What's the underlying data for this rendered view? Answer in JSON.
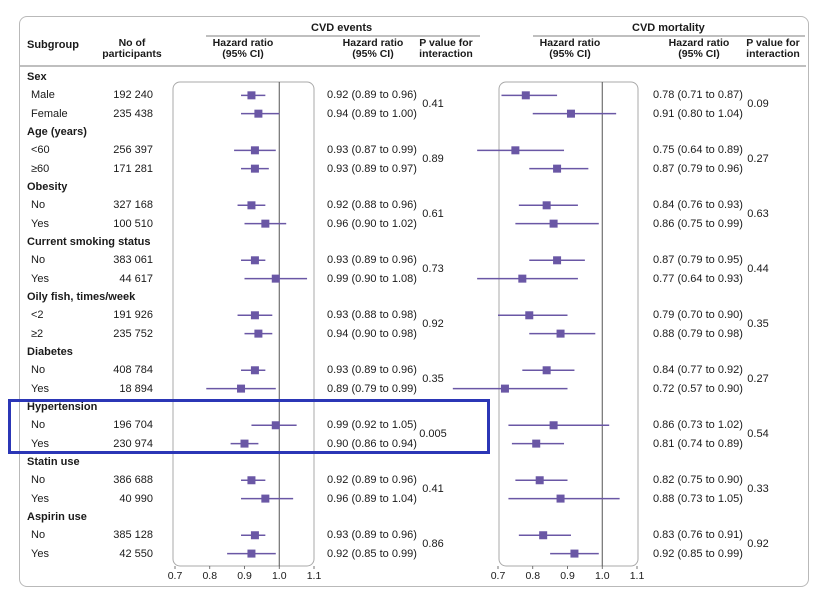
{
  "headers": {
    "subgroup": "Subgroup",
    "participants": "No of\nparticipants",
    "hr_plot": "Hazard ratio\n(95% CI)",
    "hr_text": "Hazard ratio\n(95% CI)",
    "p_int": "P value for\ninteraction",
    "panel1_title": "CVD events",
    "panel2_title": "CVD mortality"
  },
  "axis": {
    "ticks": [
      "0.7",
      "0.8",
      "0.9",
      "1.0",
      "1.1"
    ],
    "tick_values": [
      0.7,
      0.8,
      0.9,
      1.0,
      1.1
    ]
  },
  "colors": {
    "marker": "#6a57a5",
    "highlight": "#2b36b6",
    "refline": "#555555"
  },
  "chart_data": {
    "type": "forest",
    "xlim": [
      0.7,
      1.1
    ],
    "reference_line": 1.0,
    "highlighted_group": "Hypertension",
    "groups": [
      {
        "name": "Sex",
        "rows": [
          {
            "label": "Male",
            "n": "192 240",
            "events": {
              "hr": 0.92,
              "lo": 0.89,
              "hi": 0.96,
              "text": "0.92 (0.89 to 0.96)"
            },
            "mortality": {
              "hr": 0.78,
              "lo": 0.71,
              "hi": 0.87,
              "text": "0.78 (0.71 to 0.87)"
            }
          },
          {
            "label": "Female",
            "n": "235 438",
            "events": {
              "hr": 0.94,
              "lo": 0.89,
              "hi": 1.0,
              "text": "0.94 (0.89 to 1.00)"
            },
            "mortality": {
              "hr": 0.91,
              "lo": 0.8,
              "hi": 1.04,
              "text": "0.91 (0.80 to 1.04)"
            }
          }
        ],
        "p_events": "0.41",
        "p_mortality": "0.09"
      },
      {
        "name": "Age (years)",
        "rows": [
          {
            "label": "<60",
            "n": "256 397",
            "events": {
              "hr": 0.93,
              "lo": 0.87,
              "hi": 0.99,
              "text": "0.93 (0.87 to 0.99)"
            },
            "mortality": {
              "hr": 0.75,
              "lo": 0.64,
              "hi": 0.89,
              "text": "0.75 (0.64 to 0.89)"
            }
          },
          {
            "label": "≥60",
            "n": "171 281",
            "events": {
              "hr": 0.93,
              "lo": 0.89,
              "hi": 0.97,
              "text": "0.93 (0.89 to 0.97)"
            },
            "mortality": {
              "hr": 0.87,
              "lo": 0.79,
              "hi": 0.96,
              "text": "0.87 (0.79 to 0.96)"
            }
          }
        ],
        "p_events": "0.89",
        "p_mortality": "0.27"
      },
      {
        "name": "Obesity",
        "rows": [
          {
            "label": "No",
            "n": "327 168",
            "events": {
              "hr": 0.92,
              "lo": 0.88,
              "hi": 0.96,
              "text": "0.92 (0.88 to 0.96)"
            },
            "mortality": {
              "hr": 0.84,
              "lo": 0.76,
              "hi": 0.93,
              "text": "0.84 (0.76 to 0.93)"
            }
          },
          {
            "label": "Yes",
            "n": "100 510",
            "events": {
              "hr": 0.96,
              "lo": 0.9,
              "hi": 1.02,
              "text": "0.96 (0.90 to 1.02)"
            },
            "mortality": {
              "hr": 0.86,
              "lo": 0.75,
              "hi": 0.99,
              "text": "0.86 (0.75 to 0.99)"
            }
          }
        ],
        "p_events": "0.61",
        "p_mortality": "0.63"
      },
      {
        "name": "Current smoking status",
        "rows": [
          {
            "label": "No",
            "n": "383 061",
            "events": {
              "hr": 0.93,
              "lo": 0.89,
              "hi": 0.96,
              "text": "0.93 (0.89 to 0.96)"
            },
            "mortality": {
              "hr": 0.87,
              "lo": 0.79,
              "hi": 0.95,
              "text": "0.87 (0.79 to 0.95)"
            }
          },
          {
            "label": "Yes",
            "n": "44 617",
            "events": {
              "hr": 0.99,
              "lo": 0.9,
              "hi": 1.08,
              "text": "0.99 (0.90 to 1.08)"
            },
            "mortality": {
              "hr": 0.77,
              "lo": 0.64,
              "hi": 0.93,
              "text": "0.77 (0.64 to 0.93)"
            }
          }
        ],
        "p_events": "0.73",
        "p_mortality": "0.44"
      },
      {
        "name": "Oily fish, times/week",
        "rows": [
          {
            "label": "<2",
            "n": "191 926",
            "events": {
              "hr": 0.93,
              "lo": 0.88,
              "hi": 0.98,
              "text": "0.93 (0.88 to 0.98)"
            },
            "mortality": {
              "hr": 0.79,
              "lo": 0.7,
              "hi": 0.9,
              "text": "0.79 (0.70 to 0.90)"
            }
          },
          {
            "label": "≥2",
            "n": "235 752",
            "events": {
              "hr": 0.94,
              "lo": 0.9,
              "hi": 0.98,
              "text": "0.94 (0.90 to 0.98)"
            },
            "mortality": {
              "hr": 0.88,
              "lo": 0.79,
              "hi": 0.98,
              "text": "0.88 (0.79 to 0.98)"
            }
          }
        ],
        "p_events": "0.92",
        "p_mortality": "0.35"
      },
      {
        "name": "Diabetes",
        "rows": [
          {
            "label": "No",
            "n": "408 784",
            "events": {
              "hr": 0.93,
              "lo": 0.89,
              "hi": 0.96,
              "text": "0.93 (0.89 to 0.96)"
            },
            "mortality": {
              "hr": 0.84,
              "lo": 0.77,
              "hi": 0.92,
              "text": "0.84 (0.77 to 0.92)"
            }
          },
          {
            "label": "Yes",
            "n": "18 894",
            "events": {
              "hr": 0.89,
              "lo": 0.79,
              "hi": 0.99,
              "text": "0.89 (0.79 to 0.99)"
            },
            "mortality": {
              "hr": 0.72,
              "lo": 0.57,
              "hi": 0.9,
              "text": "0.72 (0.57 to 0.90)"
            }
          }
        ],
        "p_events": "0.35",
        "p_mortality": "0.27"
      },
      {
        "name": "Hypertension",
        "rows": [
          {
            "label": "No",
            "n": "196 704",
            "events": {
              "hr": 0.99,
              "lo": 0.92,
              "hi": 1.05,
              "text": "0.99 (0.92 to 1.05)"
            },
            "mortality": {
              "hr": 0.86,
              "lo": 0.73,
              "hi": 1.02,
              "text": "0.86 (0.73 to 1.02)"
            }
          },
          {
            "label": "Yes",
            "n": "230 974",
            "events": {
              "hr": 0.9,
              "lo": 0.86,
              "hi": 0.94,
              "text": "0.90 (0.86 to 0.94)"
            },
            "mortality": {
              "hr": 0.81,
              "lo": 0.74,
              "hi": 0.89,
              "text": "0.81 (0.74 to 0.89)"
            }
          }
        ],
        "p_events": "0.005",
        "p_mortality": "0.54"
      },
      {
        "name": "Statin use",
        "rows": [
          {
            "label": "No",
            "n": "386 688",
            "events": {
              "hr": 0.92,
              "lo": 0.89,
              "hi": 0.96,
              "text": "0.92 (0.89 to 0.96)"
            },
            "mortality": {
              "hr": 0.82,
              "lo": 0.75,
              "hi": 0.9,
              "text": "0.82 (0.75 to 0.90)"
            }
          },
          {
            "label": "Yes",
            "n": "40 990",
            "events": {
              "hr": 0.96,
              "lo": 0.89,
              "hi": 1.04,
              "text": "0.96 (0.89 to 1.04)"
            },
            "mortality": {
              "hr": 0.88,
              "lo": 0.73,
              "hi": 1.05,
              "text": "0.88 (0.73 to 1.05)"
            }
          }
        ],
        "p_events": "0.41",
        "p_mortality": "0.33"
      },
      {
        "name": "Aspirin use",
        "rows": [
          {
            "label": "No",
            "n": "385 128",
            "events": {
              "hr": 0.93,
              "lo": 0.89,
              "hi": 0.96,
              "text": "0.93 (0.89 to 0.96)"
            },
            "mortality": {
              "hr": 0.83,
              "lo": 0.76,
              "hi": 0.91,
              "text": "0.83 (0.76 to 0.91)"
            }
          },
          {
            "label": "Yes",
            "n": "42 550",
            "events": {
              "hr": 0.92,
              "lo": 0.85,
              "hi": 0.99,
              "text": "0.92 (0.85 to 0.99)"
            },
            "mortality": {
              "hr": 0.92,
              "lo": 0.85,
              "hi": 0.99,
              "text": "0.92 (0.85 to 0.99)"
            }
          }
        ],
        "p_events": "0.86",
        "p_mortality": "0.92"
      }
    ]
  }
}
